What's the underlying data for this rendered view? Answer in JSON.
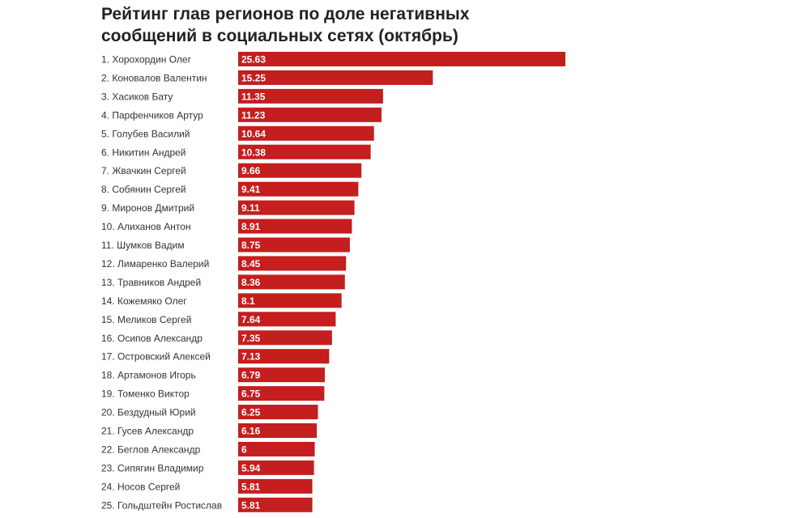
{
  "chart_data": {
    "type": "bar",
    "orientation": "horizontal",
    "title_lines": [
      "Рейтинг глав регионов по доле негативных",
      "сообщений в социальных сетях (октябрь)"
    ],
    "categories": [
      "1. Хорохордин Олег",
      "2. Коновалов Валентин",
      "3. Хасиков Бату",
      "4. Парфенчиков Артур",
      "5. Голубев Василий",
      "6. Никитин Андрей",
      "7. Жвачкин Сергей",
      "8. Собянин Сергей",
      "9. Миронов Дмитрий",
      "10. Алиханов Антон",
      "11. Шумков Вадим",
      "12. Лимаренко Валерий",
      "13. Травников Андрей",
      "14. Кожемяко Олег",
      "15. Меликов Сергей",
      "16. Осипов Александр",
      "17. Островский Алексей",
      "18. Артамонов Игорь",
      "19. Томенко Виктор",
      "20. Бездудный Юрий",
      "21. Гусев Александр",
      "22. Беглов Александр",
      "23. Сипягин Владимир",
      "24. Носов Сергей",
      "25. Гольдштейн Ростислав"
    ],
    "values": [
      25.63,
      15.25,
      11.35,
      11.23,
      10.64,
      10.38,
      9.66,
      9.41,
      9.11,
      8.91,
      8.75,
      8.45,
      8.36,
      8.1,
      7.64,
      7.35,
      7.13,
      6.79,
      6.75,
      6.25,
      6.16,
      6,
      5.94,
      5.81,
      5.81
    ],
    "value_labels": [
      "25.63",
      "15.25",
      "11.35",
      "11.23",
      "10.64",
      "10.38",
      "9.66",
      "9.41",
      "9.11",
      "8.91",
      "8.75",
      "8.45",
      "8.36",
      "8.1",
      "7.64",
      "7.35",
      "7.13",
      "6.79",
      "6.75",
      "6.25",
      "6.16",
      "6",
      "5.94",
      "5.81",
      "5.81"
    ],
    "bar_color": "#c41e1e",
    "grid": false,
    "legend": "none"
  }
}
